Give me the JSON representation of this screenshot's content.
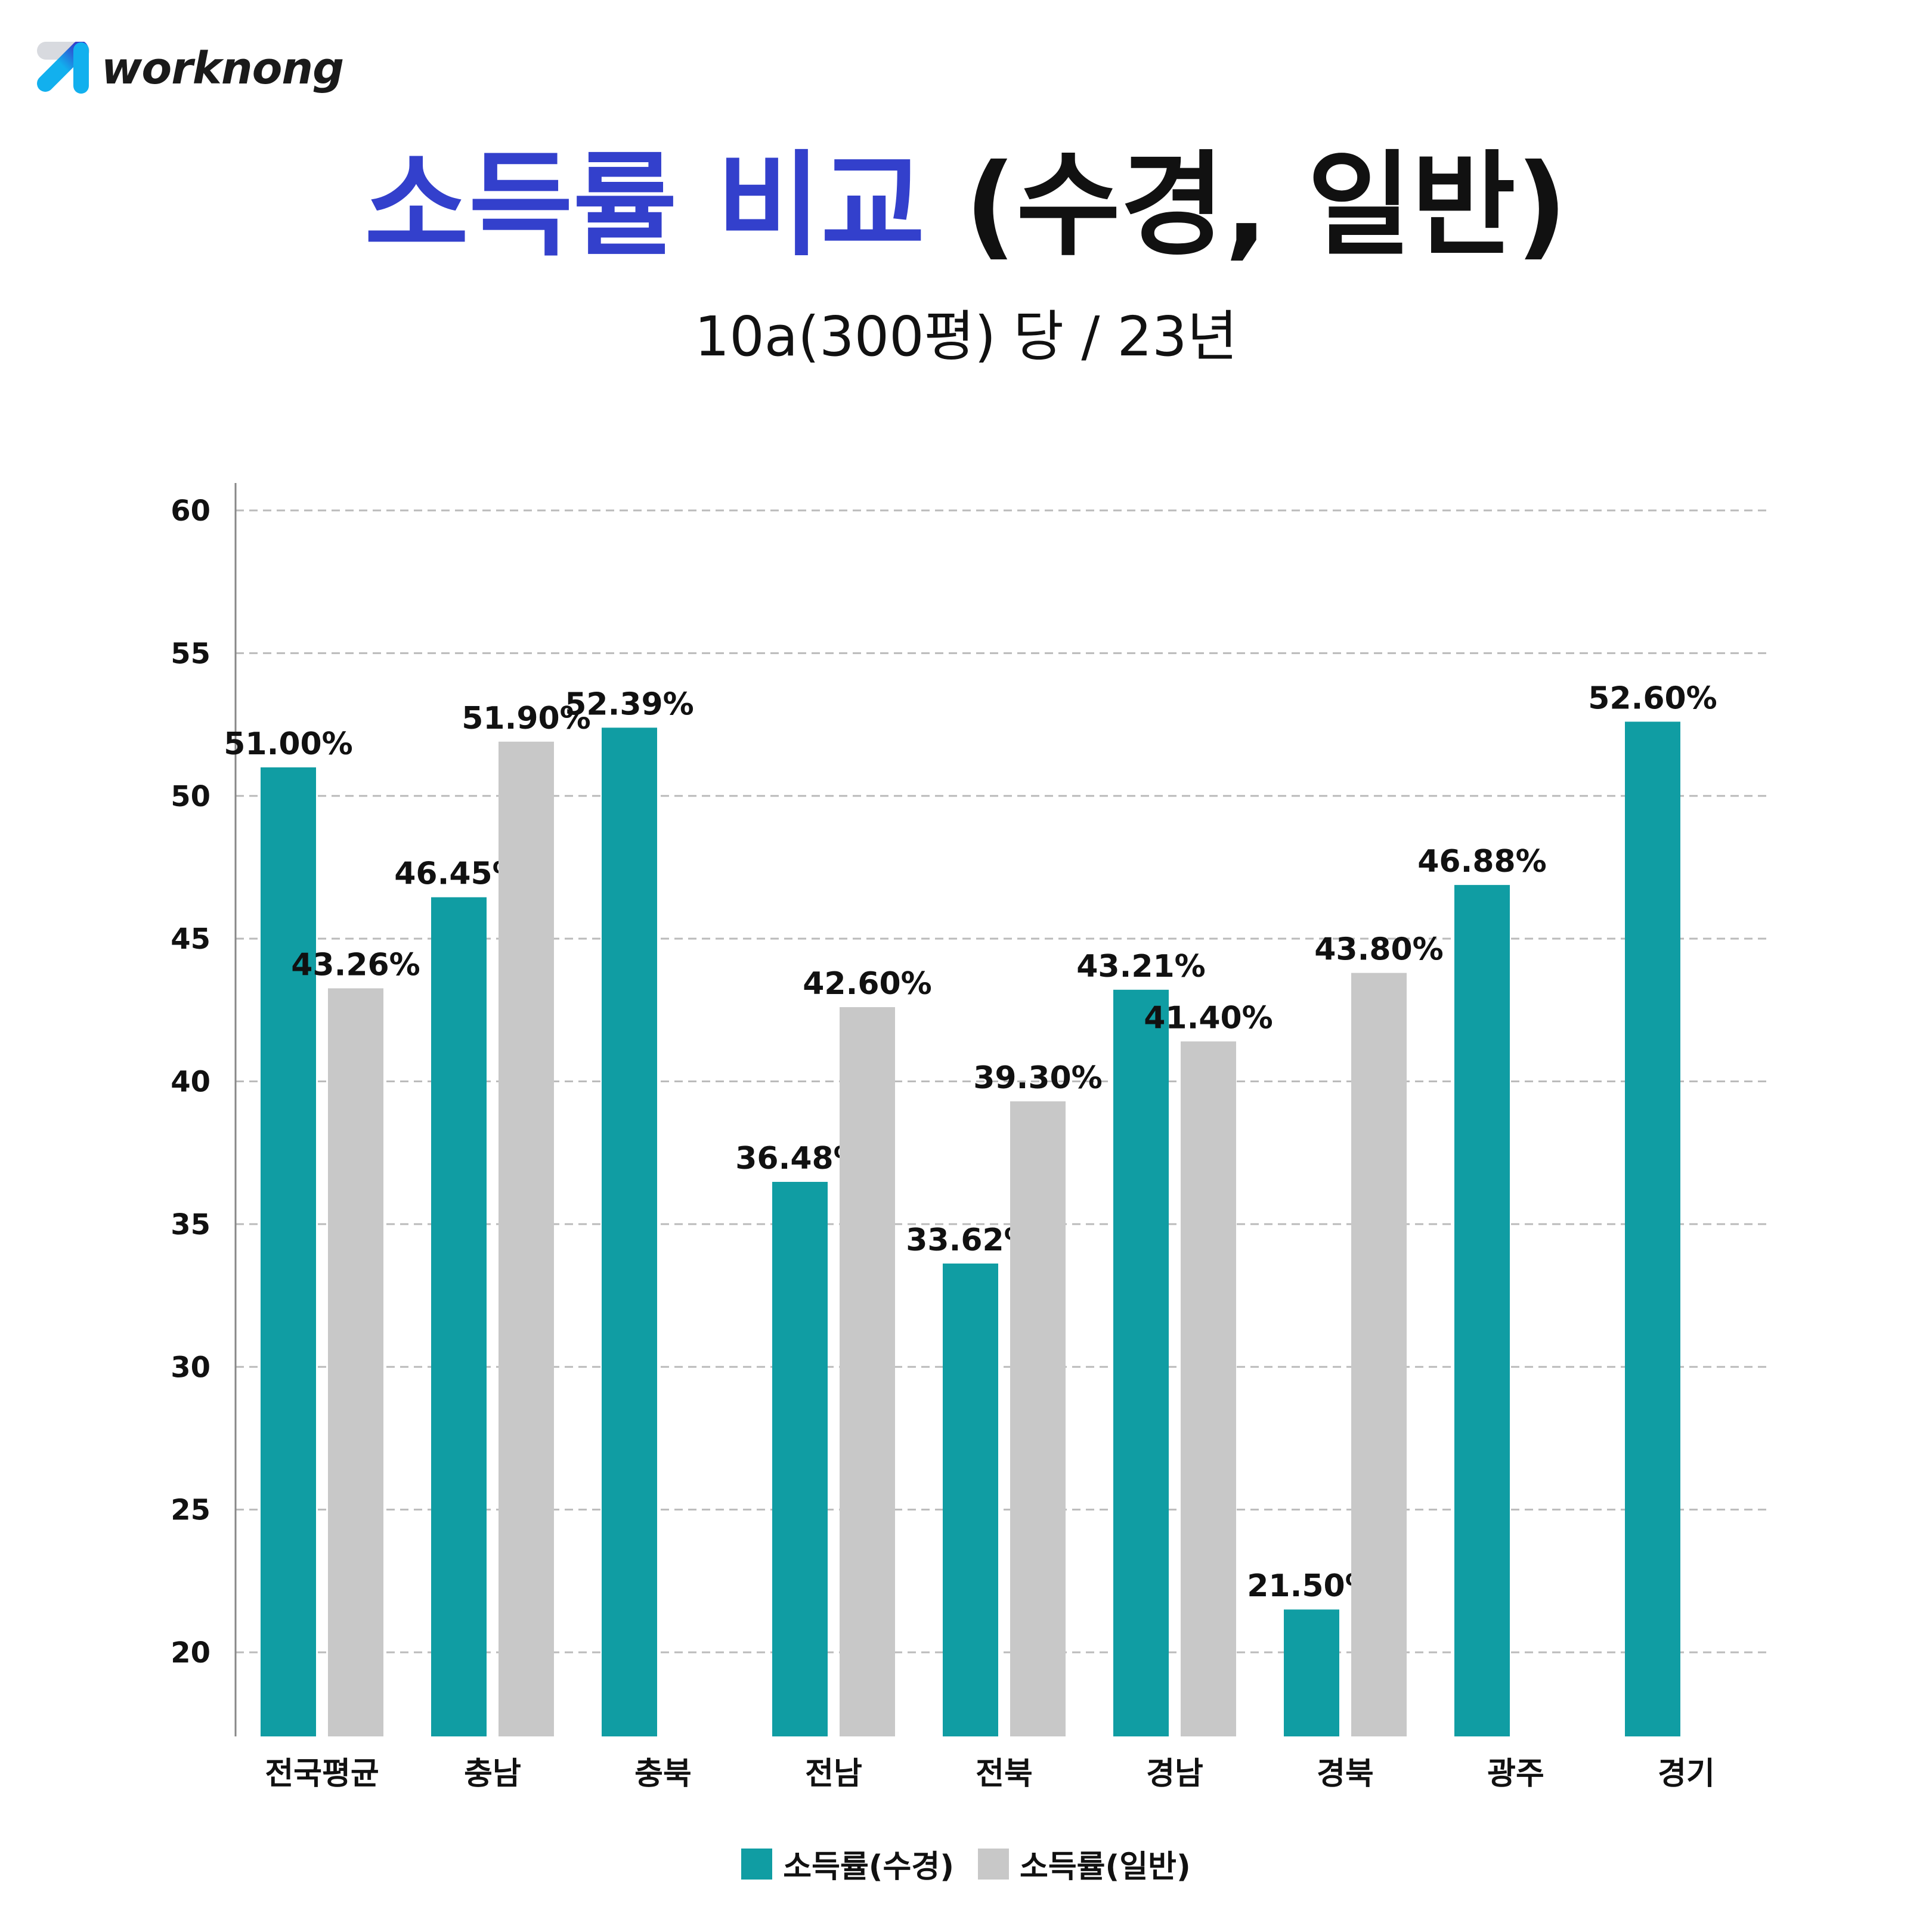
{
  "logo": {
    "text": "worknong"
  },
  "header": {
    "title_accent": "소득률 비교",
    "title_rest": "(수경, 일반)",
    "subtitle": "10a(300평) 당 / 23년"
  },
  "colors": {
    "series1": "#109DA3",
    "series2": "#C8C8C8",
    "title_accent": "#3340CC",
    "grid": "#BBBBBB"
  },
  "chart_data": {
    "type": "bar",
    "categories": [
      "전국평균",
      "충남",
      "충북",
      "전남",
      "전북",
      "경남",
      "경북",
      "광주",
      "경기"
    ],
    "series": [
      {
        "name": "소득률(수경)",
        "values": [
          51.0,
          46.45,
          52.39,
          36.48,
          33.62,
          43.21,
          21.5,
          46.88,
          52.6
        ],
        "labels": [
          "51.00%",
          "46.45%",
          "52.39%",
          "36.48%",
          "33.62%",
          "43.21%",
          "21.50%",
          "46.88%",
          "52.60%"
        ]
      },
      {
        "name": "소득률(일반)",
        "values": [
          43.26,
          51.9,
          null,
          42.6,
          39.3,
          41.4,
          43.8,
          null,
          null
        ],
        "labels": [
          "43.26%",
          "51.90%",
          null,
          "42.60%",
          "39.30%",
          "41.40%",
          "43.80%",
          null,
          null
        ]
      }
    ],
    "yticks": [
      20,
      25,
      30,
      35,
      40,
      45,
      50,
      55,
      60
    ],
    "ylim": [
      17,
      61
    ],
    "grid": true,
    "legend_position": "bottom"
  }
}
